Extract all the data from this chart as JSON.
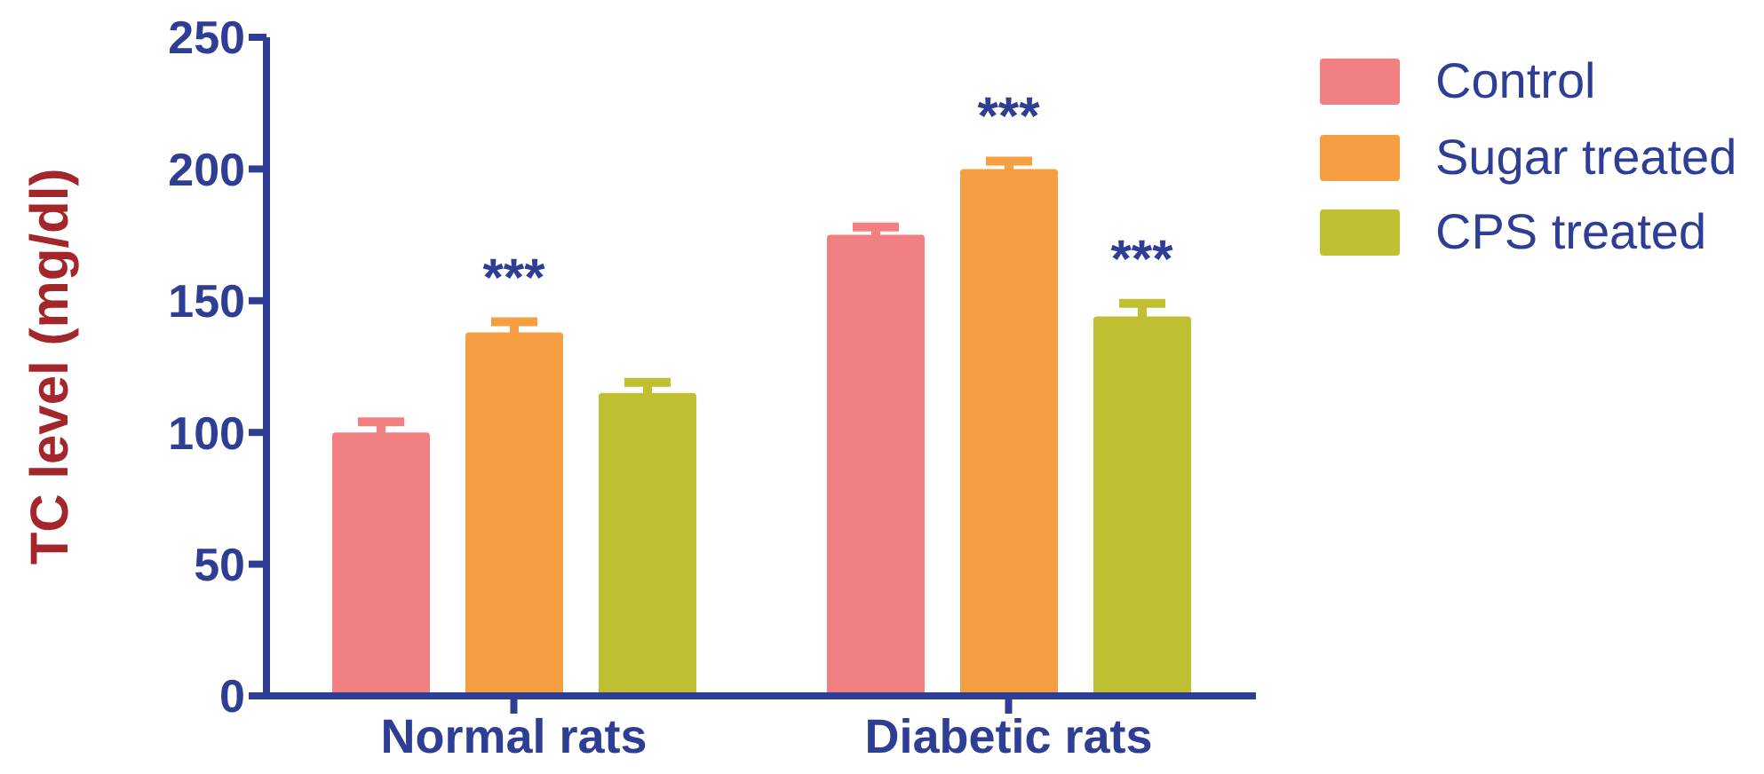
{
  "chart_data": {
    "type": "bar",
    "ylabel": "TC level (mg/dl)",
    "categories": [
      "Normal rats",
      "Diabetic rats"
    ],
    "series": [
      {
        "name": "Control",
        "color": "#f27f82",
        "values": [
          100,
          175
        ],
        "errors": [
          4,
          3
        ]
      },
      {
        "name": "Sugar treated",
        "color": "#f69f42",
        "values": [
          138,
          200
        ],
        "errors": [
          4,
          3
        ]
      },
      {
        "name": "CPS treated",
        "color": "#bfbf32",
        "values": [
          115,
          144
        ],
        "errors": [
          4,
          5
        ]
      }
    ],
    "ylim": [
      0,
      250
    ],
    "yticks": [
      0,
      50,
      100,
      150,
      200,
      250
    ],
    "grid": false,
    "legend": "top right",
    "annotations": [
      {
        "text": "***",
        "x": "Normal rats",
        "y": 138
      },
      {
        "text": "***",
        "x": "Diabetic rats",
        "y": 200
      },
      {
        "text": "***",
        "y": 144
      }
    ]
  }
}
